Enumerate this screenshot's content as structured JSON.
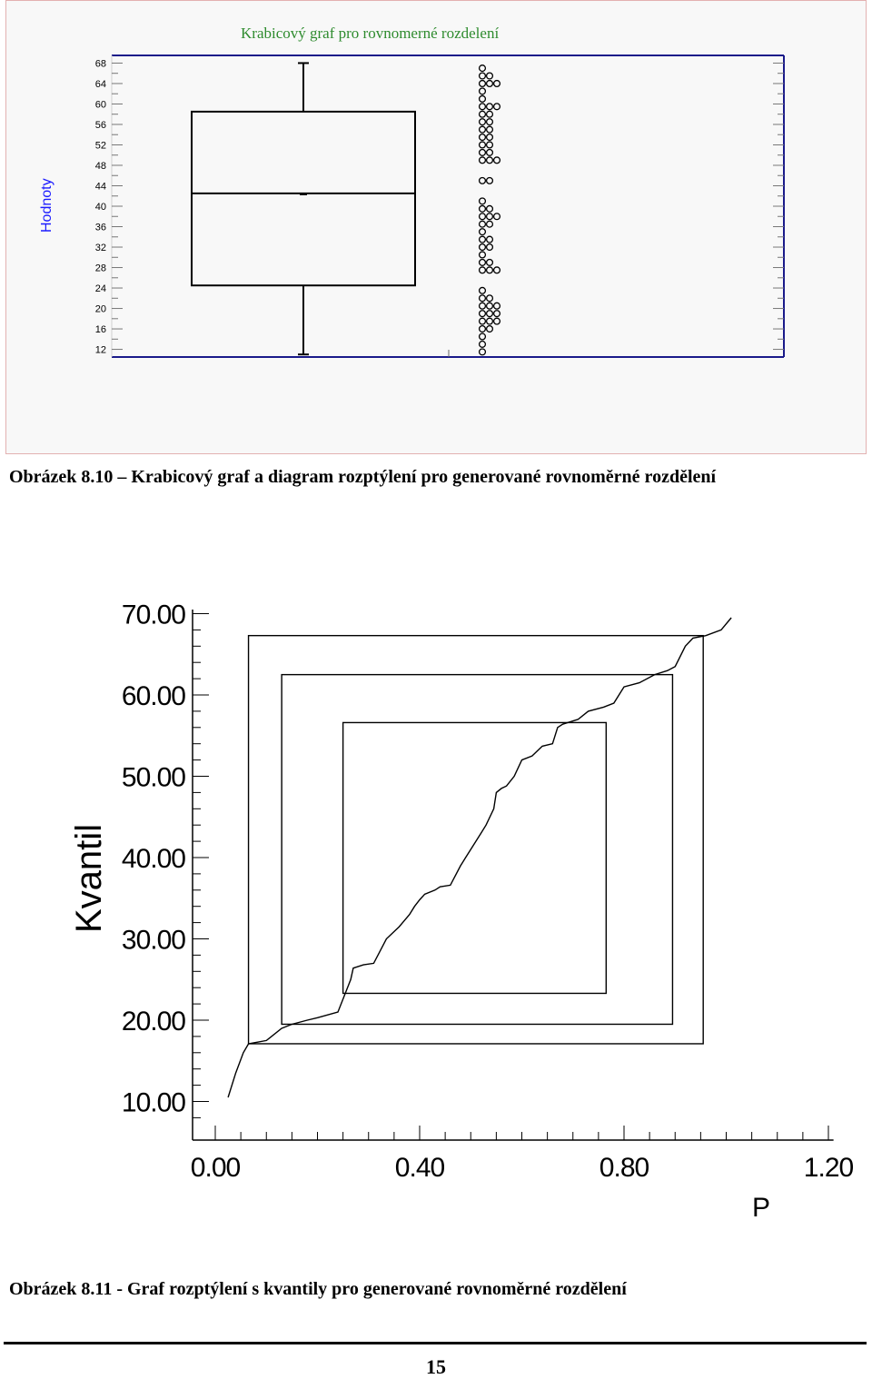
{
  "figure1": {
    "title": "Krabicový graf pro rovnomerné rozdelení",
    "ylabel": "Hodnoty",
    "caption": "Obrázek 8.10 – Krabicový graf  a diagram rozptýlení pro generované rovnoměrné rozdělení"
  },
  "figure2": {
    "xlabel": "P",
    "ylabel": "Kvantil",
    "caption": "Obrázek 8.11 - Graf rozptýlení s kvantily pro generované rovnoměrné rozdělení"
  },
  "page_number": "15",
  "chart_data": [
    {
      "type": "box",
      "title": "Krabicový graf pro rovnomerné rozdelení",
      "ylabel": "Hodnoty",
      "ylim": [
        10.5,
        69.5
      ],
      "yticks": [
        "68",
        "64",
        "60",
        "56",
        "52",
        "48",
        "44",
        "40",
        "36",
        "32",
        "28",
        "24",
        "20",
        "16",
        "12"
      ],
      "box": {
        "min": 11,
        "q1": 24.5,
        "median": 42.5,
        "q3": 58.5,
        "max": 68
      },
      "dot_rows": [
        [
          67,
          1
        ],
        [
          65.5,
          2
        ],
        [
          64,
          3
        ],
        [
          62.5,
          1
        ],
        [
          61,
          1
        ],
        [
          59.5,
          3
        ],
        [
          58,
          2
        ],
        [
          56.5,
          2
        ],
        [
          55,
          2
        ],
        [
          53.5,
          2
        ],
        [
          52,
          2
        ],
        [
          50.5,
          2
        ],
        [
          49,
          3
        ],
        [
          45,
          2
        ],
        [
          41,
          1
        ],
        [
          39.5,
          2
        ],
        [
          38,
          3
        ],
        [
          36.5,
          2
        ],
        [
          35,
          1
        ],
        [
          33.5,
          2
        ],
        [
          32,
          2
        ],
        [
          30.5,
          1
        ],
        [
          29,
          2
        ],
        [
          27.5,
          3
        ],
        [
          23.5,
          1
        ],
        [
          22,
          2
        ],
        [
          20.5,
          3
        ],
        [
          19,
          3
        ],
        [
          17.5,
          3
        ],
        [
          16,
          2
        ],
        [
          14.5,
          1
        ],
        [
          13,
          1
        ],
        [
          11.5,
          1
        ]
      ]
    },
    {
      "type": "line",
      "xlabel": "P",
      "ylabel": "Kvantil",
      "xlim": [
        -0.05,
        1.22
      ],
      "ylim": [
        7,
        71
      ],
      "xticks": [
        "0.00",
        "0.40",
        "0.80",
        "1.20"
      ],
      "yticks": [
        "10.00",
        "20.00",
        "30.00",
        "40.00",
        "50.00",
        "60.00",
        "70.00"
      ],
      "series": [
        {
          "points": [
            [
              0.025,
              10.5
            ],
            [
              0.04,
              13.5
            ],
            [
              0.055,
              16
            ],
            [
              0.065,
              17.1
            ],
            [
              0.1,
              17.5
            ],
            [
              0.13,
              19
            ],
            [
              0.15,
              19.5
            ],
            [
              0.18,
              20
            ],
            [
              0.2,
              20.3
            ],
            [
              0.24,
              21
            ],
            [
              0.265,
              25
            ],
            [
              0.27,
              26.4
            ],
            [
              0.29,
              26.8
            ],
            [
              0.31,
              27
            ],
            [
              0.335,
              30
            ],
            [
              0.36,
              31.5
            ],
            [
              0.38,
              33
            ],
            [
              0.39,
              34
            ],
            [
              0.4,
              34.8
            ],
            [
              0.41,
              35.5
            ],
            [
              0.43,
              36
            ],
            [
              0.44,
              36.4
            ],
            [
              0.46,
              36.6
            ],
            [
              0.48,
              39
            ],
            [
              0.49,
              40
            ],
            [
              0.51,
              42
            ],
            [
              0.52,
              43
            ],
            [
              0.53,
              44
            ],
            [
              0.545,
              46
            ],
            [
              0.55,
              48
            ],
            [
              0.56,
              48.5
            ],
            [
              0.57,
              48.8
            ],
            [
              0.585,
              50
            ],
            [
              0.6,
              52
            ],
            [
              0.62,
              52.5
            ],
            [
              0.64,
              53.7
            ],
            [
              0.66,
              54
            ],
            [
              0.67,
              56
            ],
            [
              0.68,
              56.4
            ],
            [
              0.71,
              57
            ],
            [
              0.73,
              58
            ],
            [
              0.76,
              58.5
            ],
            [
              0.78,
              59
            ],
            [
              0.8,
              61
            ],
            [
              0.83,
              61.5
            ],
            [
              0.86,
              62.5
            ],
            [
              0.885,
              63
            ],
            [
              0.9,
              63.5
            ],
            [
              0.92,
              66
            ],
            [
              0.935,
              67
            ],
            [
              0.96,
              67.3
            ],
            [
              0.99,
              68
            ],
            [
              1.01,
              69.5
            ]
          ]
        }
      ],
      "boxes": [
        {
          "x": [
            0.065,
            0.955
          ],
          "y": [
            17.1,
            67.3
          ]
        },
        {
          "x": [
            0.13,
            0.895
          ],
          "y": [
            19.5,
            62.5
          ]
        },
        {
          "x": [
            0.25,
            0.765
          ],
          "y": [
            23.3,
            56.6
          ]
        }
      ]
    }
  ]
}
